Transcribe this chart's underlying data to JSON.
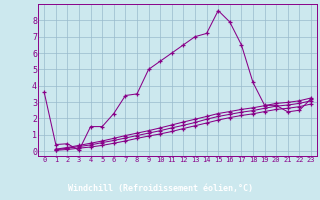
{
  "xlabel": "Windchill (Refroidissement éolien,°C)",
  "bg_color": "#cce8ee",
  "plot_bg_color": "#cce8ee",
  "line_color": "#880088",
  "grid_color": "#99bbcc",
  "bottom_bar_color": "#440066",
  "bottom_text_color": "#ffffff",
  "xlim": [
    -0.5,
    23.5
  ],
  "ylim": [
    -0.3,
    9.0
  ],
  "xticks": [
    0,
    1,
    2,
    3,
    4,
    5,
    6,
    7,
    8,
    9,
    10,
    11,
    12,
    13,
    14,
    15,
    16,
    17,
    18,
    19,
    20,
    21,
    22,
    23
  ],
  "yticks": [
    0,
    1,
    2,
    3,
    4,
    5,
    6,
    7,
    8
  ],
  "line1_x": [
    0,
    1,
    2,
    3,
    4,
    5,
    6,
    7,
    8,
    9,
    10,
    11,
    12,
    13,
    14,
    15,
    16,
    17,
    18,
    19,
    20,
    21,
    22,
    23
  ],
  "line1_y": [
    3.6,
    0.4,
    0.45,
    0.05,
    1.5,
    1.5,
    2.3,
    3.4,
    3.5,
    5.0,
    5.5,
    6.0,
    6.5,
    7.0,
    7.2,
    8.6,
    7.9,
    6.5,
    4.2,
    2.8,
    2.8,
    2.4,
    2.5,
    3.2
  ],
  "line2_x": [
    1,
    2,
    3,
    4,
    5,
    6,
    7,
    8,
    9,
    10,
    11,
    12,
    13,
    14,
    15,
    16,
    17,
    18,
    19,
    20,
    21,
    22,
    23
  ],
  "line2_y": [
    0.05,
    0.1,
    0.18,
    0.25,
    0.35,
    0.48,
    0.62,
    0.78,
    0.92,
    1.05,
    1.2,
    1.38,
    1.55,
    1.72,
    1.9,
    2.05,
    2.18,
    2.28,
    2.42,
    2.55,
    2.62,
    2.72,
    2.88
  ],
  "line3_x": [
    1,
    2,
    3,
    4,
    5,
    6,
    7,
    8,
    9,
    10,
    11,
    12,
    13,
    14,
    15,
    16,
    17,
    18,
    19,
    20,
    21,
    22,
    23
  ],
  "line3_y": [
    0.08,
    0.18,
    0.28,
    0.38,
    0.52,
    0.65,
    0.8,
    0.95,
    1.1,
    1.25,
    1.42,
    1.58,
    1.75,
    1.95,
    2.12,
    2.25,
    2.38,
    2.48,
    2.62,
    2.75,
    2.82,
    2.92,
    3.08
  ],
  "line4_x": [
    1,
    2,
    3,
    4,
    5,
    6,
    7,
    8,
    9,
    10,
    11,
    12,
    13,
    14,
    15,
    16,
    17,
    18,
    19,
    20,
    21,
    22,
    23
  ],
  "line4_y": [
    0.12,
    0.22,
    0.35,
    0.48,
    0.62,
    0.78,
    0.95,
    1.1,
    1.25,
    1.42,
    1.6,
    1.78,
    1.95,
    2.12,
    2.3,
    2.42,
    2.55,
    2.65,
    2.78,
    2.92,
    2.98,
    3.08,
    3.25
  ]
}
